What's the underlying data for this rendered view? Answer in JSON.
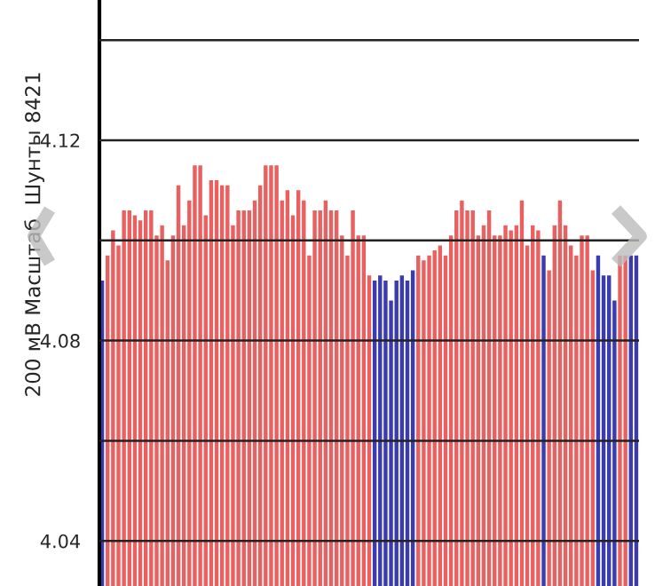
{
  "chart_data": {
    "type": "bar",
    "ylabel": "200 мВ Масштаб  Шунты 8421",
    "categories": [
      null,
      null,
      null,
      null,
      null,
      null,
      null,
      null,
      null,
      null,
      null,
      null,
      null,
      null,
      null,
      null,
      null,
      null,
      null,
      null,
      null,
      null,
      null,
      null,
      null,
      null,
      null,
      null,
      null,
      null,
      null,
      null,
      null,
      null,
      null,
      null,
      null,
      null,
      null,
      null,
      null,
      null,
      null,
      null,
      null,
      null,
      null,
      null,
      null,
      null,
      null,
      null,
      null,
      null,
      null,
      null,
      null,
      null,
      null,
      null,
      null,
      null,
      null,
      null,
      null,
      null,
      null,
      null,
      null,
      null,
      null,
      null,
      null,
      null,
      null,
      null,
      null,
      null,
      null,
      null,
      null,
      null,
      null,
      null,
      null,
      null,
      null,
      null,
      null,
      null,
      null,
      null,
      null,
      null,
      null,
      null,
      null,
      null,
      null
    ],
    "values": [
      4.092,
      4.097,
      4.102,
      4.099,
      4.106,
      4.106,
      4.105,
      4.104,
      4.106,
      4.106,
      4.101,
      4.103,
      4.096,
      4.101,
      4.111,
      4.103,
      4.108,
      4.115,
      4.115,
      4.105,
      4.112,
      4.112,
      4.111,
      4.111,
      4.103,
      4.106,
      4.106,
      4.106,
      4.108,
      4.111,
      4.115,
      4.115,
      4.115,
      4.108,
      4.11,
      4.105,
      4.11,
      4.108,
      4.097,
      4.106,
      4.106,
      4.108,
      4.106,
      4.106,
      4.101,
      4.097,
      4.106,
      4.101,
      4.101,
      4.093,
      4.092,
      4.093,
      4.092,
      4.088,
      4.092,
      4.093,
      4.092,
      4.094,
      4.097,
      4.096,
      4.097,
      4.098,
      4.099,
      4.097,
      4.101,
      4.106,
      4.108,
      4.106,
      4.106,
      4.101,
      4.103,
      4.106,
      4.101,
      4.101,
      4.103,
      4.102,
      4.103,
      4.108,
      4.099,
      4.103,
      4.102,
      4.097,
      4.094,
      4.103,
      4.108,
      4.103,
      4.099,
      4.097,
      4.101,
      4.101,
      4.094,
      4.097,
      4.093,
      4.093,
      4.088,
      4.097,
      4.097,
      4.097,
      4.097
    ],
    "colors": [
      "#3b3bb0",
      "#e8605f",
      "#e8605f",
      "#e8605f",
      "#e8605f",
      "#e8605f",
      "#e8605f",
      "#e8605f",
      "#e8605f",
      "#e8605f",
      "#e8605f",
      "#e8605f",
      "#e8605f",
      "#e8605f",
      "#e8605f",
      "#e8605f",
      "#e8605f",
      "#e8605f",
      "#e8605f",
      "#e8605f",
      "#e8605f",
      "#e8605f",
      "#e8605f",
      "#e8605f",
      "#e8605f",
      "#e8605f",
      "#e8605f",
      "#e8605f",
      "#e8605f",
      "#e8605f",
      "#e8605f",
      "#e8605f",
      "#e8605f",
      "#e8605f",
      "#e8605f",
      "#e8605f",
      "#e8605f",
      "#e8605f",
      "#e8605f",
      "#e8605f",
      "#e8605f",
      "#e8605f",
      "#e8605f",
      "#e8605f",
      "#e8605f",
      "#e8605f",
      "#e8605f",
      "#e8605f",
      "#e8605f",
      "#e8605f",
      "#3b3bb0",
      "#3b3bb0",
      "#3b3bb0",
      "#3b3bb0",
      "#3b3bb0",
      "#3b3bb0",
      "#3b3bb0",
      "#3b3bb0",
      "#e8605f",
      "#e8605f",
      "#e8605f",
      "#e8605f",
      "#e8605f",
      "#e8605f",
      "#e8605f",
      "#e8605f",
      "#e8605f",
      "#e8605f",
      "#e8605f",
      "#e8605f",
      "#e8605f",
      "#e8605f",
      "#e8605f",
      "#e8605f",
      "#e8605f",
      "#e8605f",
      "#e8605f",
      "#e8605f",
      "#e8605f",
      "#e8605f",
      "#e8605f",
      "#3b3bb0",
      "#e8605f",
      "#e8605f",
      "#e8605f",
      "#e8605f",
      "#e8605f",
      "#e8605f",
      "#e8605f",
      "#e8605f",
      "#e8605f",
      "#3b3bb0",
      "#3b3bb0",
      "#3b3bb0",
      "#3b3bb0",
      "#e8605f",
      "#e8605f",
      "#3b3bb0",
      "#3b3bb0"
    ],
    "ylim": [
      4.031,
      4.148
    ],
    "yticks": [
      4.04,
      {
        "value": 4.06,
        "label": null
      },
      4.08,
      {
        "value": 4.1,
        "label": null
      },
      4.12,
      {
        "value": 4.14,
        "label": null
      }
    ],
    "grid": "y",
    "tick_labels": "y"
  }
}
